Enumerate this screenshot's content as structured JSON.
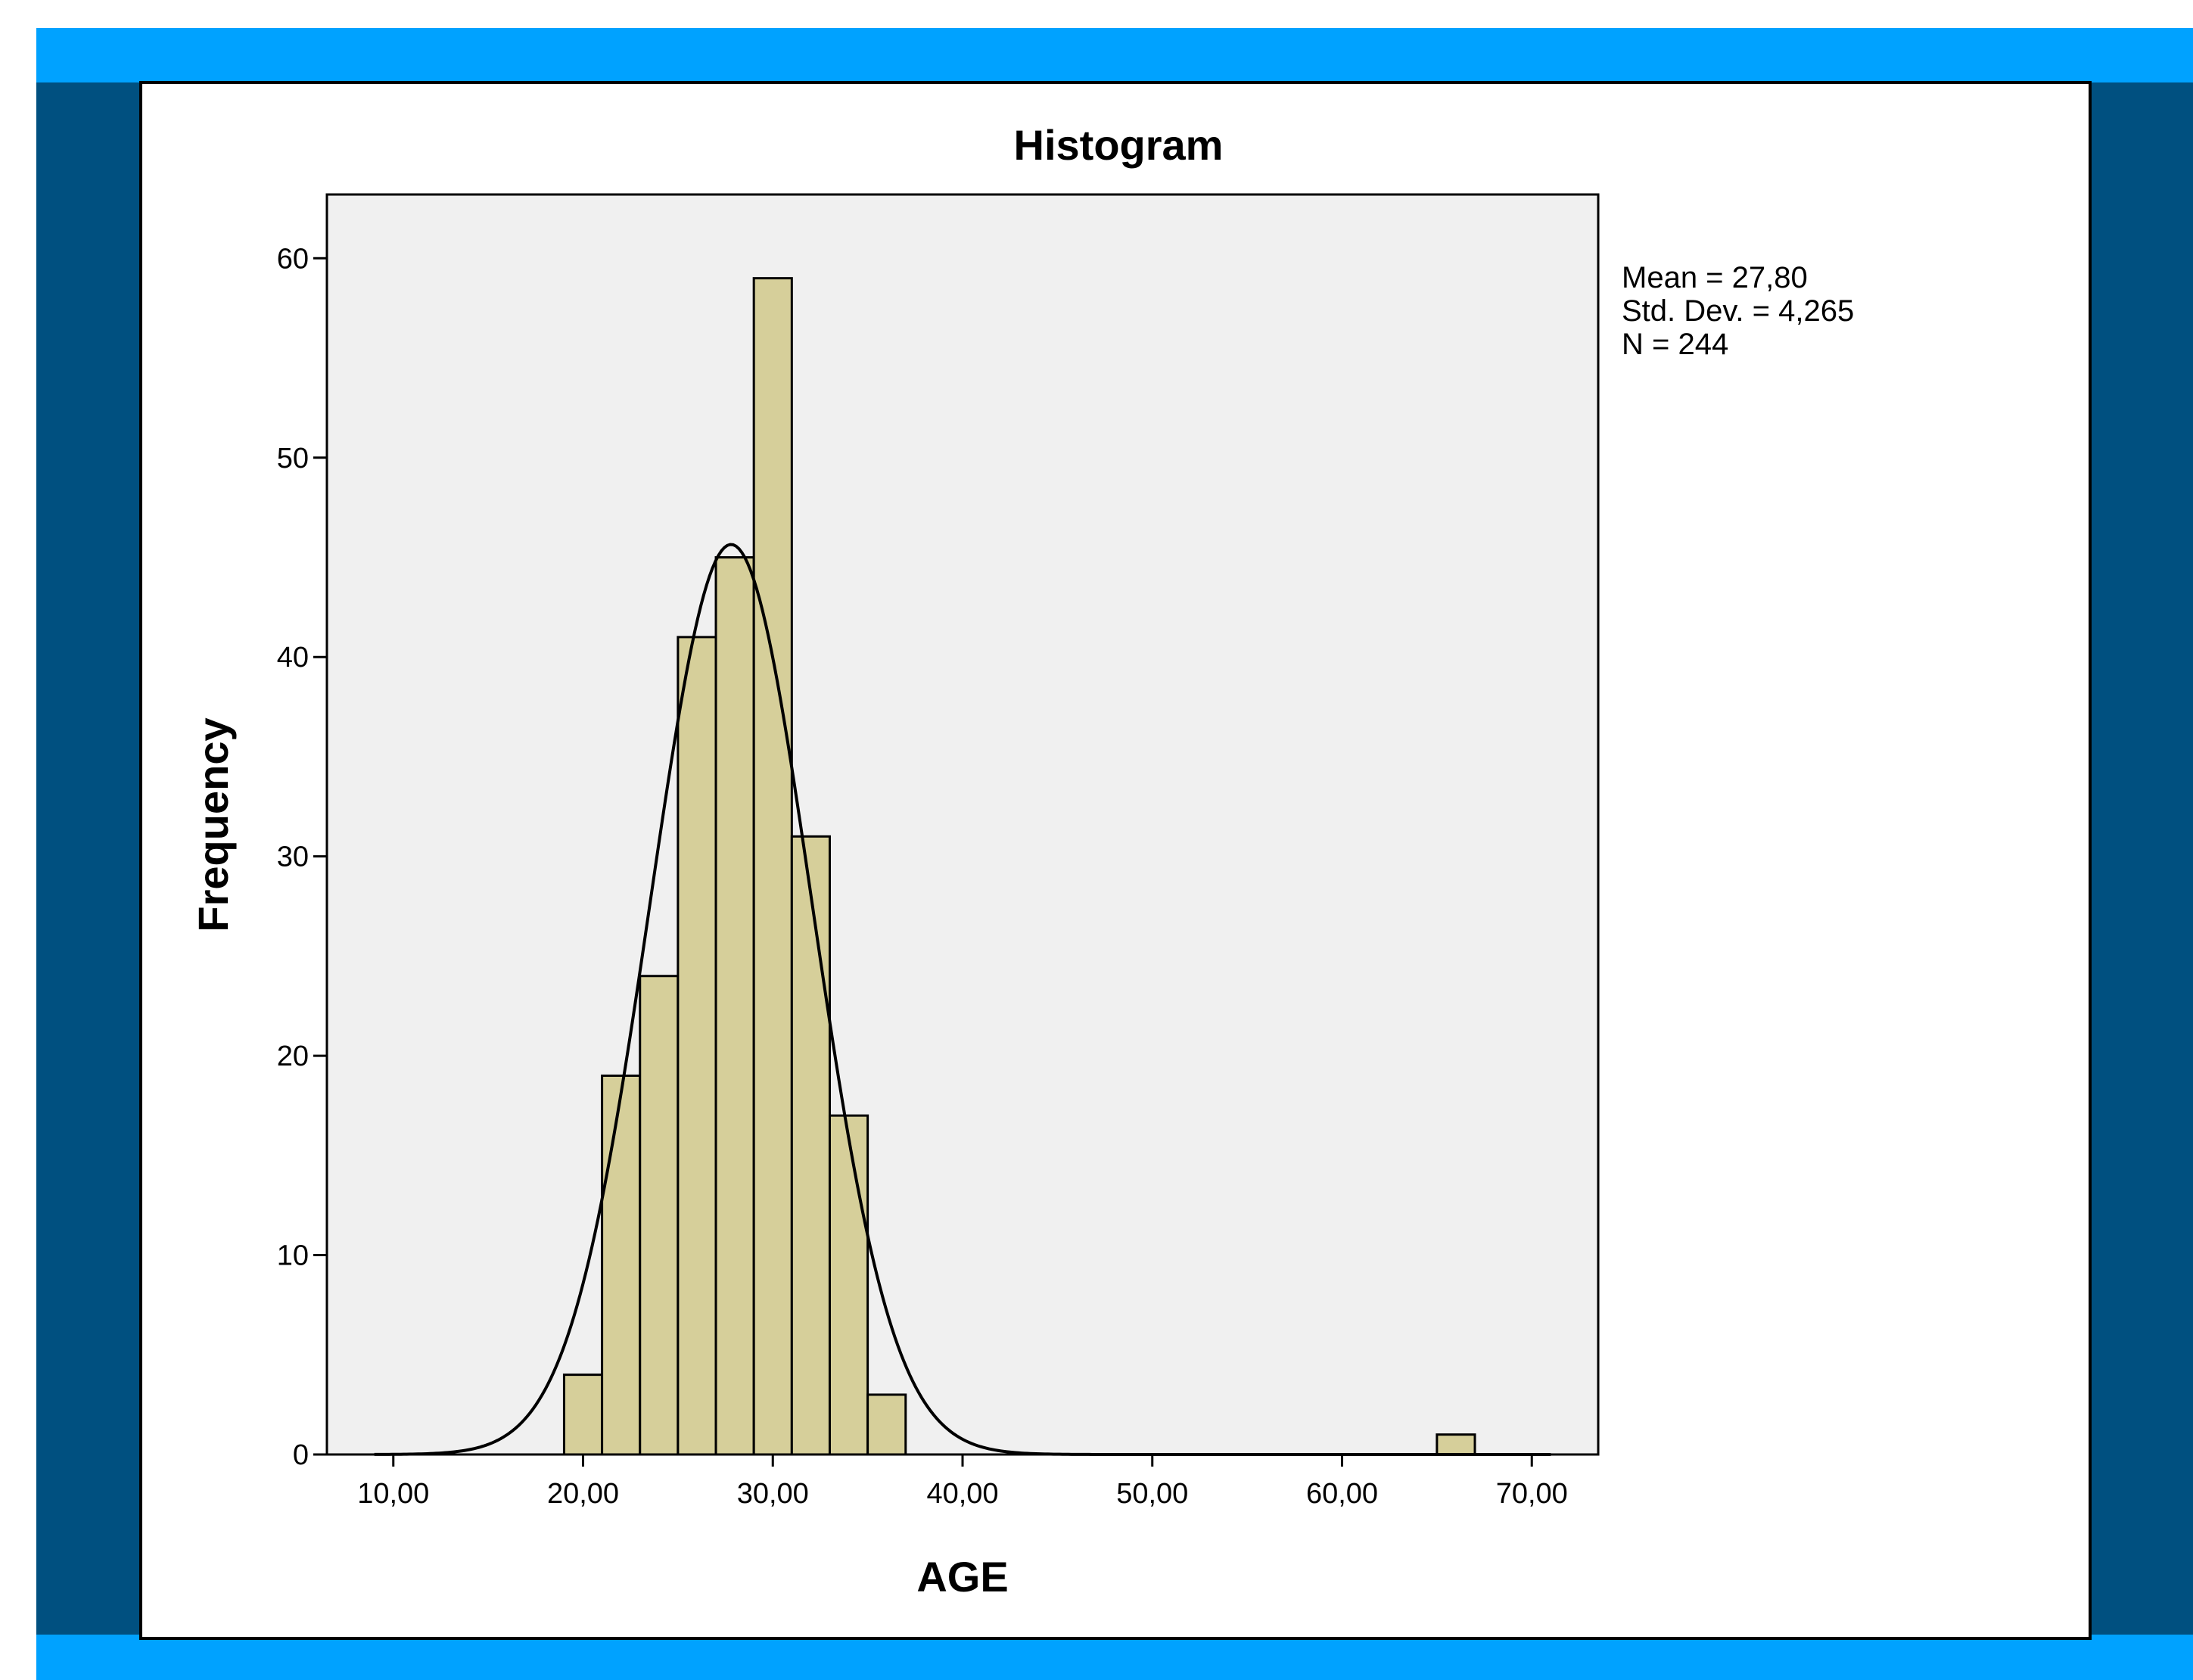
{
  "colors": {
    "accent_bar": "#00a2ff",
    "frame": "#005080",
    "plot_background": "#f0f0f0",
    "bar_fill": "#d6cf9a",
    "bar_stroke": "#000000"
  },
  "chart_data": {
    "type": "bar",
    "title": "Histogram",
    "xlabel": "AGE",
    "ylabel": "Frequency",
    "xlim": [
      6.5,
      73.5
    ],
    "ylim": [
      0,
      63.2
    ],
    "x_ticks": [
      10,
      20,
      30,
      40,
      50,
      60,
      70
    ],
    "x_tick_labels": [
      "10,00",
      "20,00",
      "30,00",
      "40,00",
      "50,00",
      "60,00",
      "70,00"
    ],
    "y_ticks": [
      0,
      10,
      20,
      30,
      40,
      50,
      60
    ],
    "y_tick_labels": [
      "0",
      "10",
      "20",
      "30",
      "40",
      "50",
      "60"
    ],
    "bin_width": 2,
    "bins": [
      {
        "start": 19,
        "end": 21,
        "count": 4
      },
      {
        "start": 21,
        "end": 23,
        "count": 19
      },
      {
        "start": 23,
        "end": 25,
        "count": 24
      },
      {
        "start": 25,
        "end": 27,
        "count": 41
      },
      {
        "start": 27,
        "end": 29,
        "count": 45
      },
      {
        "start": 29,
        "end": 31,
        "count": 59
      },
      {
        "start": 31,
        "end": 33,
        "count": 31
      },
      {
        "start": 33,
        "end": 35,
        "count": 17
      },
      {
        "start": 35,
        "end": 37,
        "count": 3
      },
      {
        "start": 65,
        "end": 67,
        "count": 1
      }
    ],
    "normal_curve": {
      "mean": 27.8,
      "std_dev": 4.265,
      "n": 244
    },
    "stats": [
      "Mean = 27,80",
      "Std. Dev. = 4,265",
      "N = 244"
    ],
    "grid": false,
    "legend": "none"
  }
}
